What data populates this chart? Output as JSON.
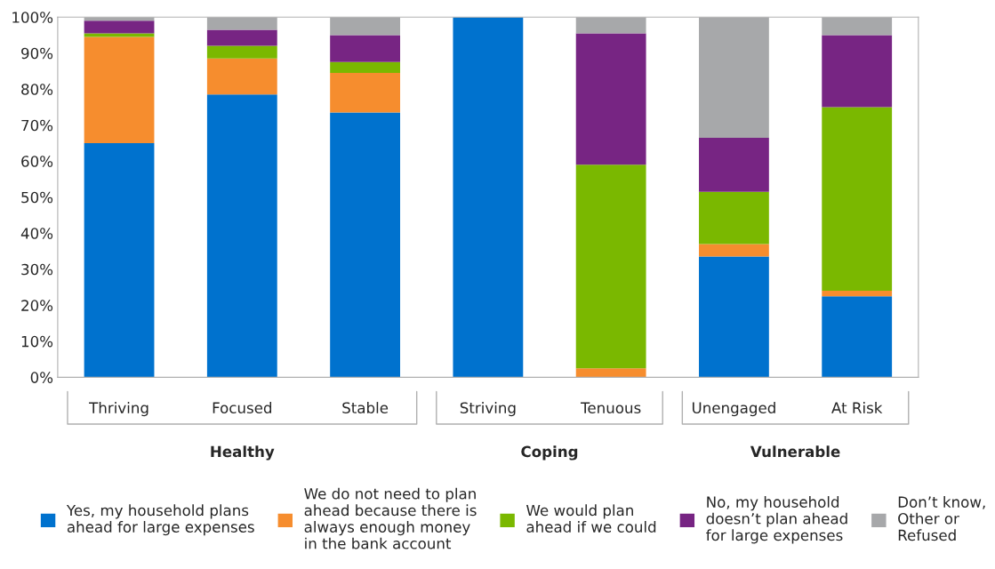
{
  "chart_data": {
    "type": "bar",
    "stacked": true,
    "categories": [
      "Thriving",
      "Focused",
      "Stable",
      "Striving",
      "Tenuous",
      "Unengaged",
      "At Risk"
    ],
    "series": [
      {
        "name": "Yes, my household plans\nahead for large expenses",
        "color": "#0072ce",
        "values": [
          65,
          78.5,
          73.5,
          100,
          0,
          33.5,
          22.5
        ]
      },
      {
        "name": "We do not need to plan\nahead because there is\nalways enough money\nin the bank account",
        "color": "#f68d2e",
        "values": [
          29.5,
          10,
          11,
          0,
          2.5,
          3.5,
          1.5
        ]
      },
      {
        "name": "We would plan\nahead if we could",
        "color": "#7ab800",
        "values": [
          1,
          3.5,
          3,
          0,
          56.5,
          14.5,
          51
        ]
      },
      {
        "name": "No, my household\ndoesn’t plan ahead\nfor large expenses",
        "color": "#772583",
        "values": [
          3.5,
          4.5,
          7.5,
          0,
          36.5,
          15,
          20
        ]
      },
      {
        "name": "Don’t know,\nOther or\nRefused",
        "color": "#a7a8aa",
        "values": [
          1,
          3.5,
          5,
          0,
          4.5,
          33.5,
          5
        ]
      }
    ],
    "ylim": [
      0,
      100
    ],
    "yticks": [
      {
        "value": 0,
        "label": "0%"
      },
      {
        "value": 10,
        "label": "10%"
      },
      {
        "value": 20,
        "label": "20%"
      },
      {
        "value": 30,
        "label": "30%"
      },
      {
        "value": 40,
        "label": "40%"
      },
      {
        "value": 50,
        "label": "50%"
      },
      {
        "value": 60,
        "label": "60%"
      },
      {
        "value": 70,
        "label": "70%"
      },
      {
        "value": 80,
        "label": "80%"
      },
      {
        "value": 90,
        "label": "90%"
      },
      {
        "value": 100,
        "label": "100%"
      }
    ],
    "annotations": [
      "Healthy",
      "Coping",
      "Vulnerable"
    ],
    "legend": "bottom",
    "grid": false
  }
}
